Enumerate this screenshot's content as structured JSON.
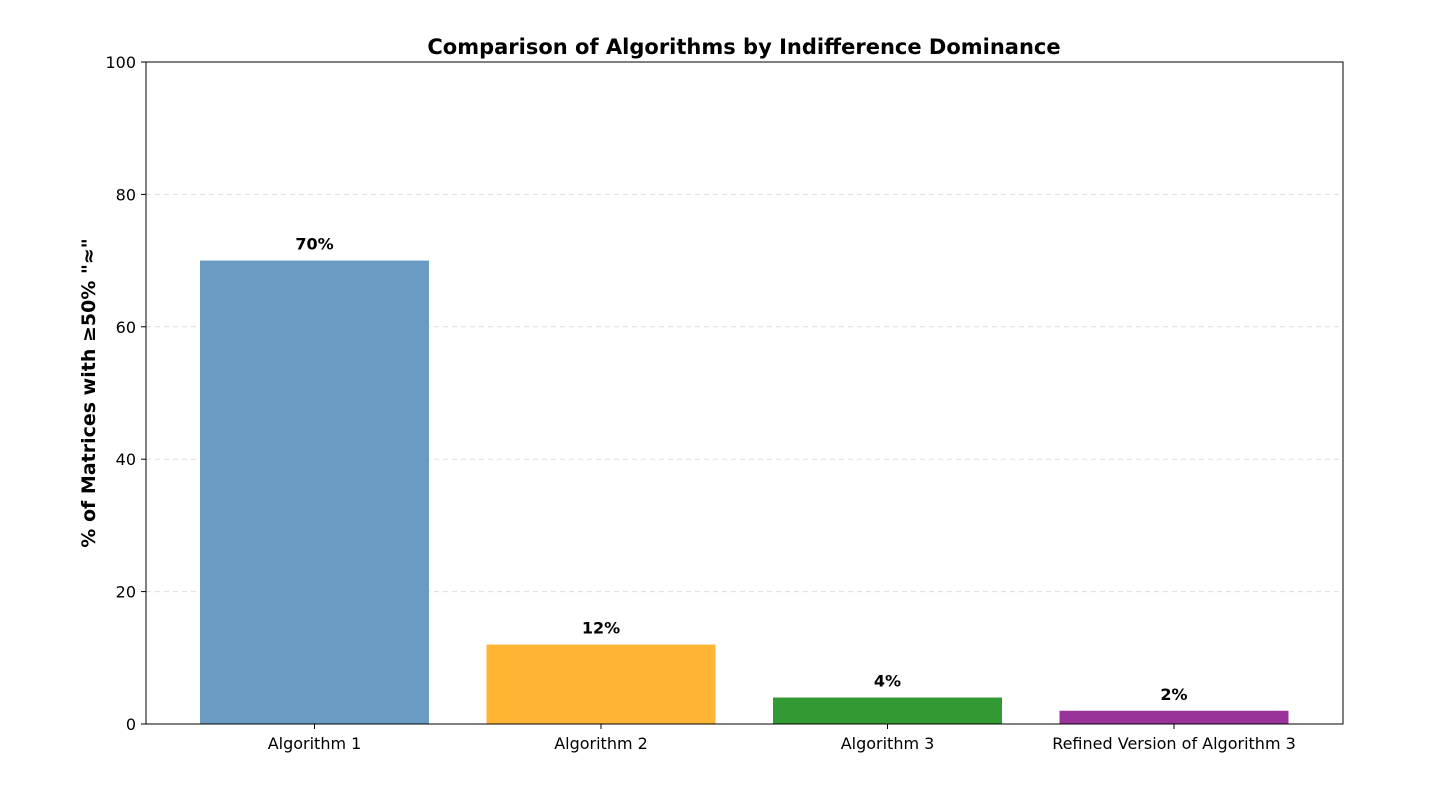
{
  "chart_data": {
    "type": "bar",
    "title": "Comparison of Algorithms by Indifference Dominance",
    "xlabel": "",
    "ylabel": "% of Matrices with ≥50% \"≈\"",
    "categories": [
      "Algorithm 1",
      "Algorithm 2",
      "Algorithm 3",
      "Refined Version of Algorithm 3"
    ],
    "values": [
      70,
      12,
      4,
      2
    ],
    "data_labels": [
      "70%",
      "12%",
      "4%",
      "2%"
    ],
    "colors": [
      "#6a9bc3",
      "#ffb533",
      "#339933",
      "#993399"
    ],
    "ylim": [
      0,
      100
    ],
    "yticks": [
      0,
      20,
      40,
      60,
      80,
      100
    ],
    "ytick_labels": [
      "0",
      "20",
      "40",
      "60",
      "80",
      "100"
    ],
    "grid": "y-dashed",
    "legend": "none"
  }
}
